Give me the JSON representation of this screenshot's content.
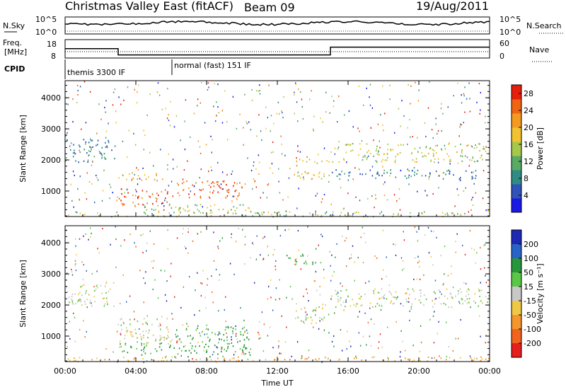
{
  "header": {
    "title": "Christmas Valley East (fitACF)",
    "beam": "Beam 09",
    "date": "19/Aug/2011"
  },
  "status_panel": {
    "nsky_label": "N.Sky",
    "nsearch_label": "N.Search",
    "nsky_ticks": [
      "10^5",
      "10^0"
    ],
    "nsearch_ticks": [
      "10^5",
      "10^0"
    ],
    "freq_label": "Freq.",
    "freq_unit": "[MHz]",
    "freq_ticks": [
      "18",
      "8"
    ],
    "nave_label": "Nave",
    "nave_ticks": [
      "60",
      "0"
    ],
    "cpid_label": "CPID",
    "cpid_entries": [
      "themis 3300 IF",
      "normal (fast) 151 IF"
    ],
    "freq_series": {
      "t": [
        0,
        3.0,
        3.0,
        15.0,
        15.0,
        24
      ],
      "f_mhz": [
        14,
        14,
        10,
        10,
        15,
        15
      ]
    }
  },
  "chart_data": [
    {
      "type": "heatmap",
      "name": "power",
      "ylabel": "Slant Range [km]",
      "xlabel": "",
      "ylim": [
        180,
        4550
      ],
      "xlim": [
        0,
        24
      ],
      "yticks": [
        "1000",
        "2000",
        "3000",
        "4000"
      ],
      "colorbar": {
        "label": "Power [dB]",
        "ticks": [
          "4",
          "8",
          "12",
          "16",
          "20",
          "24",
          "28"
        ],
        "colors": [
          "#1a1ae6",
          "#2f53b8",
          "#2f8c84",
          "#5aaa66",
          "#a6c84a",
          "#f2c230",
          "#f59a20",
          "#f06414",
          "#e61e0c"
        ],
        "range": [
          0,
          30
        ]
      },
      "regions": [
        {
          "t0": 0.0,
          "t1": 2.8,
          "r0": 1950,
          "r1": 2750,
          "level": 8
        },
        {
          "t0": 3.0,
          "t1": 5.6,
          "r0": 1350,
          "r1": 1650,
          "level": 20
        },
        {
          "t0": 3.0,
          "t1": 6.0,
          "r0": 550,
          "r1": 1100,
          "level": 27
        },
        {
          "t0": 6.2,
          "t1": 10.0,
          "r0": 750,
          "r1": 1350,
          "level": 26
        },
        {
          "t0": 4.0,
          "t1": 10.5,
          "r0": 300,
          "r1": 600,
          "level": 14
        },
        {
          "t0": 13.0,
          "t1": 14.9,
          "r0": 1400,
          "r1": 2050,
          "level": 18
        },
        {
          "t0": 15.0,
          "t1": 24.0,
          "r0": 1950,
          "r1": 2550,
          "level": 16
        },
        {
          "t0": 15.0,
          "t1": 23.5,
          "r0": 1400,
          "r1": 1700,
          "level": 6
        },
        {
          "t0": 0.0,
          "t1": 24.0,
          "r0": 200,
          "r1": 350,
          "level": 14
        }
      ]
    },
    {
      "type": "heatmap",
      "name": "velocity",
      "ylabel": "Slant Range [km]",
      "xlabel": "Time UT",
      "ylim": [
        180,
        4550
      ],
      "xlim": [
        0,
        24
      ],
      "yticks": [
        "1000",
        "2000",
        "3000",
        "4000"
      ],
      "xticks": [
        "00:00",
        "04:00",
        "08:00",
        "12:00",
        "16:00",
        "20:00",
        "00:00"
      ],
      "colorbar": {
        "label": "Velocity [m s⁻¹]",
        "ticks": [
          "200",
          "100",
          "50",
          "15",
          "-15",
          "-50",
          "-100",
          "-200"
        ],
        "colors": [
          "#1e28b4",
          "#2864c8",
          "#28963c",
          "#5ac846",
          "#c8c8c8",
          "#f0c846",
          "#f5962d",
          "#f0641e",
          "#e61e1e"
        ]
      },
      "regions": [
        {
          "t0": 0.0,
          "t1": 2.8,
          "r0": 1950,
          "r1": 2750,
          "vel": 0
        },
        {
          "t0": 3.0,
          "t1": 6.0,
          "r0": 650,
          "r1": 1600,
          "vel": 0
        },
        {
          "t0": 6.2,
          "t1": 10.5,
          "r0": 800,
          "r1": 1350,
          "vel": 40
        },
        {
          "t0": 3.0,
          "t1": 10.5,
          "r0": 350,
          "r1": 800,
          "vel": 40
        },
        {
          "t0": 13.0,
          "t1": 14.9,
          "r0": 1400,
          "r1": 2050,
          "vel": 0
        },
        {
          "t0": 15.0,
          "t1": 24.0,
          "r0": 1950,
          "r1": 2550,
          "vel": 0
        },
        {
          "t0": 12.5,
          "t1": 14.0,
          "r0": 3300,
          "r1": 3650,
          "vel": 45
        },
        {
          "t0": 0.0,
          "t1": 24.0,
          "r0": 200,
          "r1": 350,
          "vel": -40
        }
      ]
    }
  ]
}
